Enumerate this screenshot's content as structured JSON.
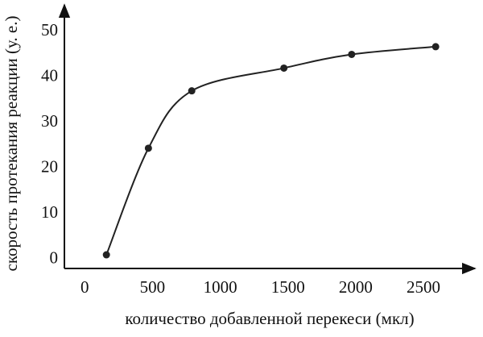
{
  "chart_data": {
    "type": "line",
    "xlabel": "количество добавленной перекеси (мкл)",
    "ylabel": "скорость протекания реакции (у. е.)",
    "x": [
      160,
      470,
      790,
      1470,
      1970,
      2590
    ],
    "series": [
      {
        "color": "#222222",
        "values": [
          1,
          24.4,
          37,
          42,
          45,
          46.7
        ]
      }
    ],
    "xlim": [
      -150,
      2880
    ],
    "xticks": [
      0,
      500,
      1000,
      1500,
      2000,
      2500
    ],
    "ylim": [
      -2,
      55
    ],
    "yticks": [
      0,
      10,
      20,
      30,
      40,
      50
    ],
    "grid": false
  }
}
